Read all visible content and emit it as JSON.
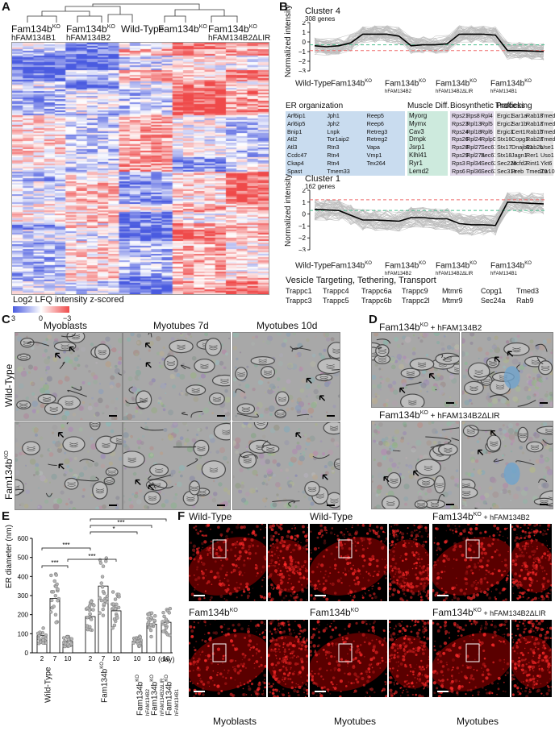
{
  "panel_letters": [
    "A",
    "B",
    "C",
    "D",
    "E",
    "F"
  ],
  "panelA": {
    "col_headers": [
      {
        "main": "Fam134b",
        "sup": "KO",
        "sub": "hFAM134B1"
      },
      {
        "main": "Fam134b",
        "sup": "KO",
        "sub": "hFAM134B2"
      },
      {
        "main": "Wild-Type",
        "sup": "",
        "sub": ""
      },
      {
        "main": "Fam134b",
        "sup": "KO",
        "sub": ""
      },
      {
        "main": "Fam134b",
        "sup": "KO",
        "sub": "hFAM134B2ΔLIR"
      }
    ],
    "legend_title": "Log2 LFQ intensity z-scored",
    "legend_ticks": [
      "3",
      "0",
      "−3"
    ]
  },
  "panelB": {
    "cluster4": {
      "title": "Cluster 4",
      "sub": "308 genes",
      "ylabel": "Normalized intensity",
      "yticks": [
        "2",
        "1",
        "0",
        "−1",
        "−2",
        "−3"
      ]
    },
    "cluster1": {
      "title": "Cluster 1",
      "sub": "162 genes",
      "ylabel": "Normalized intensity",
      "yticks": [
        "2",
        "1",
        "0",
        "−1",
        "−2",
        "−3"
      ]
    },
    "xgroups_c4": [
      {
        "main": "Wild-Type",
        "sup": "",
        "sub": ""
      },
      {
        "main": "Fam134b",
        "sup": "KO",
        "sub": ""
      },
      {
        "main": "Fam134b",
        "sup": "KO",
        "sub": "hFAM134B2"
      },
      {
        "main": "Fam134b",
        "sup": "KO",
        "sub": "hFAM134B2ΔLIR"
      },
      {
        "main": "Fam134b",
        "sup": "KO",
        "sub": "hFAM134B1"
      }
    ],
    "xgroups_c1": [
      {
        "main": "Wild-Type",
        "sup": "",
        "sub": ""
      },
      {
        "main": "Fam134b",
        "sup": "KO",
        "sub": ""
      },
      {
        "main": "Fam134b",
        "sup": "KO",
        "sub": "hFAM134B2"
      },
      {
        "main": "Fam134b",
        "sup": "KO",
        "sub": "hFAM134B2ΔLIR"
      },
      {
        "main": "Fam134b",
        "sup": "KO",
        "sub": "hFAM134B1"
      }
    ],
    "categories": [
      {
        "title": "ER organization",
        "color": "#c9dcef",
        "cols": [
          [
            "Arf6ip1",
            "Arl6ip5",
            "Bnip1",
            "Atl2",
            "Atl3",
            "Ccdc47",
            "Ckap4",
            "Spast"
          ],
          [
            "Jph1",
            "Jph2",
            "Lnpk",
            "Tor1aip2",
            "Rtn3",
            "Rtn4",
            "Rtn4",
            "Tmem33"
          ],
          [
            "Reep5",
            "Reep6",
            "Retreg3",
            "Retreg2",
            "Vapa",
            "Vmp1",
            "Tex264",
            ""
          ]
        ]
      },
      {
        "title": "Muscle Diff.",
        "color": "#cdeadd",
        "cols": [
          [
            "Myorg",
            "Mymx",
            "Cav3",
            "Dmpk",
            "Jsrp1",
            "Klhl41",
            "Ryr1",
            "Lemd2"
          ]
        ]
      },
      {
        "title": "Biosynthetic Process",
        "color": "#dfd6e8",
        "cols": [
          [
            "Rps21",
            "Rps23",
            "Rps24",
            "Rps26",
            "Rps28",
            "Rps29",
            "Rps3",
            "Rps6"
          ],
          [
            "Rps8",
            "Rpl13",
            "Rpl18",
            "Rpl24",
            "Rpl27",
            "Rpl27a",
            "Rpl34",
            "Rpl36"
          ],
          [
            "Rpl4",
            "Rpl5",
            "Rpl6",
            "Rplp0",
            "Sec61g",
            "Sec61b",
            "Sec62",
            "Sec63"
          ]
        ]
      },
      {
        "title": "Trafficking",
        "color": "#e3e3e3",
        "cols": [
          [
            "Ergic1",
            "Ergic2",
            "Ergic3",
            "Stx16",
            "Stx17",
            "Stx18",
            "Sec22b",
            "Sec31a"
          ],
          [
            "Sar1a",
            "Sar1b",
            "Cert1",
            "Copg1",
            "Dnajb11",
            "Jagn1",
            "Mcfd2",
            "Preb"
          ],
          [
            "Rab18",
            "Rab1a",
            "Rab1b",
            "Rab2a",
            "Rab2b",
            "Rer1",
            "Rint1",
            "Tmed10"
          ],
          [
            "Tmed4",
            "Tmed5",
            "Tmed7",
            "Tmed9",
            "Use1",
            "Uso1",
            "Ykt6",
            "Zw10"
          ]
        ]
      }
    ],
    "vesicle": {
      "title": "Vesicle Targeting, Tethering, Transport",
      "rows": [
        [
          "Trappc1",
          "Trappc4",
          "Trappc6a",
          "Trappc9",
          "Mtmr6",
          "Copg1",
          "Tmed3"
        ],
        [
          "Trappc3",
          "Trappc5",
          "Trappc6b",
          "Trappc2l",
          "Mtmr9",
          "Sec24a",
          "Rab9"
        ]
      ]
    }
  },
  "panelC": {
    "cols": [
      "Myoblasts",
      "Myotubes 7d",
      "Myotubes 10d"
    ],
    "rows": [
      "Wild-Type",
      "Fam134b"
    ],
    "row_sup": [
      "",
      "KO"
    ]
  },
  "panelD": {
    "top": {
      "main": "Fam134b",
      "sup": "KO",
      "rest": " + hFAM134B2"
    },
    "bottom": {
      "main": "Fam134b",
      "sup": "KO",
      "rest": " + hFAM134B2ΔLIR"
    }
  },
  "panelE": {
    "ylabel": "ER diameter (nm)",
    "yticks": [
      "0",
      "100",
      "200",
      "300",
      "400",
      "500",
      "600"
    ],
    "xlabel_unit": "(day)",
    "sig": [
      "***",
      "***",
      "***",
      "*",
      "***",
      "***"
    ],
    "group_labels": [
      {
        "main": "Wild-Type",
        "sup": "",
        "sub": ""
      },
      {
        "main": "Fam134b",
        "sup": "KO",
        "sub": ""
      },
      {
        "main": "Fam134b",
        "sup": "KO",
        "sub": "hFAM134B2"
      },
      {
        "main": "Fam134b",
        "sup": "KO",
        "sub": "hFAM134B2ΔLIR"
      },
      {
        "main": "Fam134b",
        "sup": "KO",
        "sub": "hFAM134B1"
      }
    ],
    "chart_data": {
      "type": "bar",
      "categories": [
        "2",
        "7",
        "10",
        "2",
        "7",
        "10",
        "10",
        "10",
        "10"
      ],
      "values": [
        90,
        285,
        60,
        190,
        350,
        220,
        60,
        150,
        160
      ],
      "ylabel": "ER diameter (nm)",
      "ylim": [
        0,
        600
      ]
    }
  },
  "panelF": {
    "top": [
      {
        "main": "Wild-Type",
        "sup": "",
        "rest": ""
      },
      {
        "main": "Wild-Type",
        "sup": "",
        "rest": ""
      },
      {
        "main": "Fam134b",
        "sup": "KO",
        "rest": " + hFAM134B2"
      }
    ],
    "bottom": [
      {
        "main": "Fam134b",
        "sup": "KO",
        "rest": ""
      },
      {
        "main": "Fam134b",
        "sup": "KO",
        "rest": ""
      },
      {
        "main": "Fam134b",
        "sup": "KO",
        "rest": " + hFAM134B2ΔLIR"
      }
    ],
    "footer": [
      "Myoblasts",
      "Myotubes",
      "Myotubes"
    ]
  },
  "colors": {
    "heat_blue": "#4a5be0",
    "heat_red": "#ef4a4a",
    "plot_black": "#000000",
    "dash_green": "#4bbf8e",
    "dash_red": "#ef6a6a",
    "em_gray": "#a9a9a9",
    "if_red": "#ff2a2a"
  }
}
